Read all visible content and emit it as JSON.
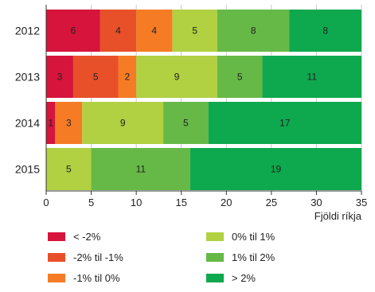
{
  "chart_data": {
    "type": "bar",
    "orientation": "horizontal",
    "stacked": true,
    "categories": [
      "2012",
      "2013",
      "2014",
      "2015"
    ],
    "series": [
      {
        "name": "< -2%",
        "color": "#d6143c",
        "values": [
          6,
          3,
          1,
          0
        ]
      },
      {
        "name": "-2% til -1%",
        "color": "#e8502a",
        "values": [
          4,
          5,
          0,
          0
        ]
      },
      {
        "name": "-1% til 0%",
        "color": "#f57c25",
        "values": [
          4,
          2,
          3,
          0
        ]
      },
      {
        "name": "0% til 1%",
        "color": "#b1d042",
        "values": [
          5,
          9,
          9,
          5
        ]
      },
      {
        "name": "1% til 2%",
        "color": "#66b947",
        "values": [
          8,
          5,
          5,
          11
        ]
      },
      {
        "name": "> 2%",
        "color": "#0ea84e",
        "values": [
          8,
          11,
          17,
          19
        ]
      }
    ],
    "xlim": [
      0,
      35
    ],
    "xticks": [
      0,
      5,
      10,
      15,
      20,
      25,
      30,
      35
    ],
    "xlabel": "Fjöldi ríkja",
    "ylabel": "",
    "title": "",
    "legend_position": "bottom",
    "grid": "vertical"
  }
}
